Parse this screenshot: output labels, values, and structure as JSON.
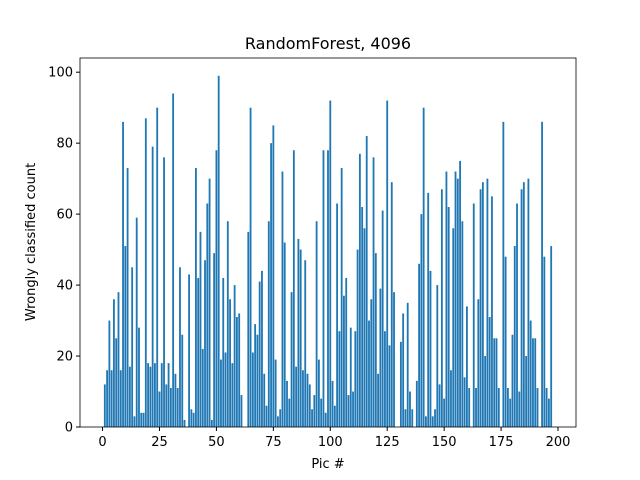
{
  "chart_data": {
    "type": "bar",
    "title": "RandomForest, 4096",
    "xlabel": "Pic #",
    "ylabel": "Wrongly classified count",
    "color": "#1f77b4",
    "x": [
      0,
      1,
      2,
      3,
      4,
      5,
      6,
      7,
      8,
      9,
      10,
      11,
      12,
      13,
      14,
      15,
      16,
      17,
      18,
      19,
      20,
      21,
      22,
      23,
      24,
      25,
      26,
      27,
      28,
      29,
      30,
      31,
      32,
      33,
      34,
      35,
      36,
      37,
      38,
      39,
      40,
      41,
      42,
      43,
      44,
      45,
      46,
      47,
      48,
      49,
      50,
      51,
      52,
      53,
      54,
      55,
      56,
      57,
      58,
      59,
      60,
      61,
      62,
      63,
      64,
      65,
      66,
      67,
      68,
      69,
      70,
      71,
      72,
      73,
      74,
      75,
      76,
      77,
      78,
      79,
      80,
      81,
      82,
      83,
      84,
      85,
      86,
      87,
      88,
      89,
      90,
      91,
      92,
      93,
      94,
      95,
      96,
      97,
      98,
      99,
      100,
      101,
      102,
      103,
      104,
      105,
      106,
      107,
      108,
      109,
      110,
      111,
      112,
      113,
      114,
      115,
      116,
      117,
      118,
      119,
      120,
      121,
      122,
      123,
      124,
      125,
      126,
      127,
      128,
      129,
      130,
      131,
      132,
      133,
      134,
      135,
      136,
      137,
      138,
      139,
      140,
      141,
      142,
      143,
      144,
      145,
      146,
      147,
      148,
      149,
      150,
      151,
      152,
      153,
      154,
      155,
      156,
      157,
      158,
      159,
      160,
      161,
      162,
      163,
      164,
      165,
      166,
      167,
      168,
      169,
      170,
      171,
      172,
      173,
      174,
      175,
      176,
      177,
      178,
      179,
      180,
      181,
      182,
      183,
      184,
      185,
      186,
      187,
      188,
      189,
      190,
      191,
      192,
      193,
      194,
      195,
      196,
      197
    ],
    "values": [
      0,
      12,
      16,
      30,
      16,
      36,
      25,
      38,
      16,
      86,
      51,
      73,
      17,
      45,
      3,
      59,
      28,
      4,
      4,
      87,
      18,
      17,
      79,
      18,
      90,
      10,
      18,
      76,
      12,
      18,
      11,
      94,
      15,
      11,
      45,
      26,
      2,
      0,
      43,
      5,
      4,
      73,
      42,
      55,
      22,
      47,
      63,
      70,
      2,
      49,
      78,
      99,
      19,
      42,
      21,
      58,
      36,
      18,
      40,
      31,
      32,
      9,
      0,
      0,
      55,
      90,
      21,
      29,
      26,
      41,
      44,
      15,
      6,
      58,
      80,
      85,
      19,
      3,
      5,
      72,
      52,
      13,
      8,
      38,
      78,
      17,
      53,
      50,
      16,
      47,
      15,
      12,
      5,
      9,
      58,
      19,
      8,
      78,
      4,
      78,
      92,
      13,
      6,
      63,
      27,
      73,
      37,
      42,
      9,
      28,
      10,
      27,
      50,
      77,
      62,
      56,
      82,
      30,
      36,
      76,
      49,
      15,
      39,
      61,
      27,
      92,
      23,
      69,
      38,
      0,
      0,
      24,
      32,
      5,
      35,
      10,
      5,
      0,
      13,
      46,
      60,
      90,
      3,
      66,
      44,
      3,
      5,
      40,
      12,
      67,
      8,
      72,
      62,
      16,
      56,
      72,
      70,
      75,
      58,
      14,
      34,
      11,
      0,
      63,
      11,
      36,
      67,
      69,
      20,
      70,
      31,
      65,
      25,
      25,
      11,
      0,
      86,
      48,
      11,
      8,
      26,
      51,
      63,
      10,
      67,
      69,
      20,
      70,
      30,
      25,
      25,
      11,
      0,
      86,
      48,
      11,
      8,
      51
    ],
    "xlim": [
      -9.9,
      207.9
    ],
    "xticks": [
      0,
      25,
      50,
      75,
      100,
      125,
      150,
      175,
      200
    ],
    "ylim": [
      0,
      104
    ],
    "yticks": [
      0,
      20,
      40,
      60,
      80,
      100
    ]
  }
}
